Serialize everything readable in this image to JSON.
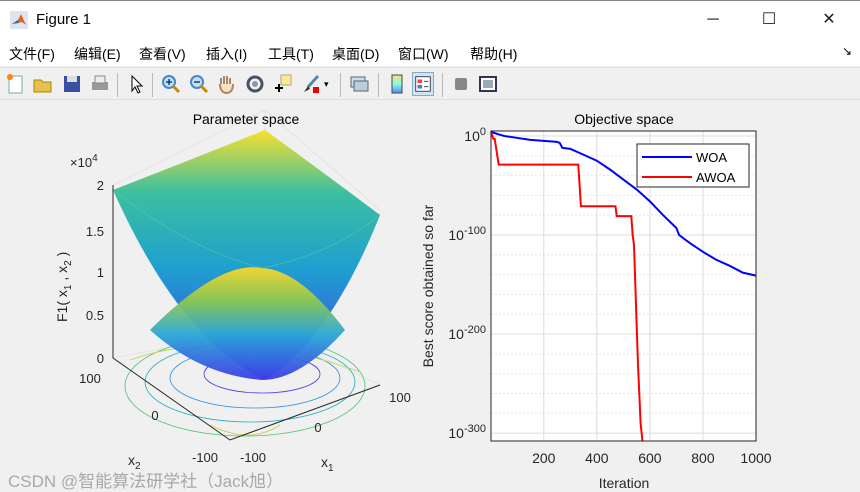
{
  "window": {
    "title": "Figure 1",
    "minimize": "─",
    "maximize": "☐",
    "close": "✕"
  },
  "menu": [
    "文件(F)",
    "编辑(E)",
    "查看(V)",
    "插入(I)",
    "工具(T)",
    "桌面(D)",
    "窗口(W)",
    "帮助(H)"
  ],
  "menu_overflow": "↘",
  "toolbar": [
    "new-figure",
    "open-file",
    "save",
    "print",
    "edit-plot",
    "zoom-in",
    "zoom-out",
    "pan",
    "rotate-3d",
    "data-cursor",
    "brush",
    "brush-dropdown",
    "link-plot",
    "colorbar",
    "legend",
    "hide-plot-tools",
    "show-plot-tools"
  ],
  "watermark": "CSDN @智能算法研学社（Jack旭）",
  "chart_data": [
    {
      "type": "surface",
      "title": "Parameter space",
      "xlabel": "x",
      "xlabel_sub": "1",
      "ylabel": "x",
      "ylabel_sub": "2",
      "zlabel": "F1( x",
      "zlabel_sub1": "1",
      "zlabel_mid": " , x",
      "zlabel_sub2": "2",
      "zlabel_end": " )",
      "z_exponent_base": "×10",
      "z_exponent": "4",
      "zticks": [
        "0",
        "0.5",
        "1",
        "1.5",
        "2"
      ],
      "xticks": [
        "-100",
        "0",
        "100"
      ],
      "yticks": [
        "-100",
        "0",
        "100"
      ],
      "xlim": [
        -100,
        100
      ],
      "ylim": [
        -100,
        100
      ],
      "zlim": [
        0,
        20000
      ],
      "function": "sum of squares",
      "colormap": "parula"
    },
    {
      "type": "line",
      "title": "Objective space",
      "xlabel": "Iteration",
      "ylabel": "Best score obtained so far",
      "yscale": "log",
      "xlim": [
        1,
        1000
      ],
      "ylim_log10": [
        -308,
        5
      ],
      "xticks": [
        "200",
        "400",
        "600",
        "800",
        "1000"
      ],
      "xtick_values": [
        200,
        400,
        600,
        800,
        1000
      ],
      "yticks": [
        {
          "base": "10",
          "exp": "0",
          "value": 0
        },
        {
          "base": "10",
          "exp": "-100",
          "value": -100
        },
        {
          "base": "10",
          "exp": "-200",
          "value": -200
        },
        {
          "base": "10",
          "exp": "-300",
          "value": -300
        }
      ],
      "legend_position": "top-right",
      "series": [
        {
          "name": "WOA",
          "color": "#0000ff",
          "x": [
            1,
            50,
            100,
            150,
            200,
            250,
            260,
            270,
            300,
            350,
            400,
            450,
            500,
            550,
            600,
            650,
            700,
            710,
            750,
            800,
            850,
            900,
            950,
            1000
          ],
          "log10_y": [
            4,
            0,
            -2,
            -4,
            -5,
            -6,
            -7,
            -12,
            -13,
            -19,
            -25,
            -34,
            -44,
            -54,
            -66,
            -80,
            -93,
            -100,
            -108,
            -117,
            -125,
            -131,
            -138,
            -141
          ]
        },
        {
          "name": "AWOA",
          "color": "#ff0000",
          "x": [
            1,
            10,
            15,
            30,
            330,
            340,
            470,
            475,
            530,
            535,
            540,
            555,
            565,
            572
          ],
          "log10_y": [
            4,
            -3,
            -3,
            -29,
            -29,
            -71,
            -71,
            -81,
            -81,
            -100,
            -110,
            -230,
            -290,
            -308
          ]
        }
      ]
    }
  ]
}
